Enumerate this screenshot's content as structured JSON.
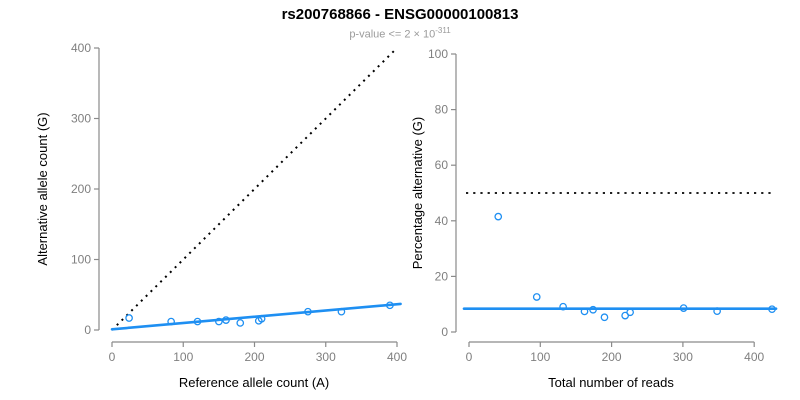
{
  "title": "rs200768866 - ENSG00000100813",
  "subtitle": {
    "text": "p-value <= 2 × 10",
    "exponent": "-311"
  },
  "colors": {
    "accent_blue": "#1E8FF2",
    "axis_line_gray": "#8a8a8a",
    "tick_label_gray": "#7f7f7f",
    "axis_title_black": "#000000",
    "dotted_line_black": "#000000",
    "subtitle_gray": "#9b9b9b"
  },
  "chart_data": [
    {
      "type": "scatter",
      "name": "allele-counts",
      "xlabel": "Reference allele count (A)",
      "ylabel": "Alternative allele count (G)",
      "xlim": [
        0,
        400
      ],
      "ylim": [
        0,
        400
      ],
      "xticks": [
        0,
        100,
        200,
        300,
        400
      ],
      "yticks": [
        0,
        100,
        200,
        300,
        400
      ],
      "grid": false,
      "legend": false,
      "points": [
        [
          24,
          17
        ],
        [
          83,
          12
        ],
        [
          120,
          12
        ],
        [
          150,
          12
        ],
        [
          160,
          14
        ],
        [
          180,
          10
        ],
        [
          206,
          13
        ],
        [
          210,
          16
        ],
        [
          275,
          26
        ],
        [
          322,
          26
        ],
        [
          390,
          35
        ]
      ],
      "identity_line": {
        "style": "dotted",
        "from": [
          0,
          0
        ],
        "to": [
          400,
          400
        ]
      },
      "fit_line": {
        "style": "solid",
        "from": [
          0,
          1
        ],
        "to": [
          405,
          37
        ]
      }
    },
    {
      "type": "scatter",
      "name": "percentage-alternative",
      "xlabel": "Total number of reads",
      "ylabel": "Percentage alternative (G)",
      "xlim": [
        0,
        425
      ],
      "ylim": [
        0,
        100
      ],
      "xticks": [
        0,
        100,
        200,
        300,
        400
      ],
      "yticks": [
        0,
        20,
        40,
        60,
        80,
        100
      ],
      "grid": false,
      "legend": false,
      "points": [
        [
          41,
          41.5
        ],
        [
          95,
          12.6
        ],
        [
          132,
          9.1
        ],
        [
          162,
          7.4
        ],
        [
          174,
          8.0
        ],
        [
          190,
          5.3
        ],
        [
          219,
          5.9
        ],
        [
          226,
          7.1
        ],
        [
          301,
          8.6
        ],
        [
          348,
          7.5
        ],
        [
          425,
          8.2
        ]
      ],
      "reference_line": {
        "style": "dotted",
        "y": 50
      },
      "fit_line": {
        "style": "solid",
        "y": 8.4
      }
    }
  ]
}
